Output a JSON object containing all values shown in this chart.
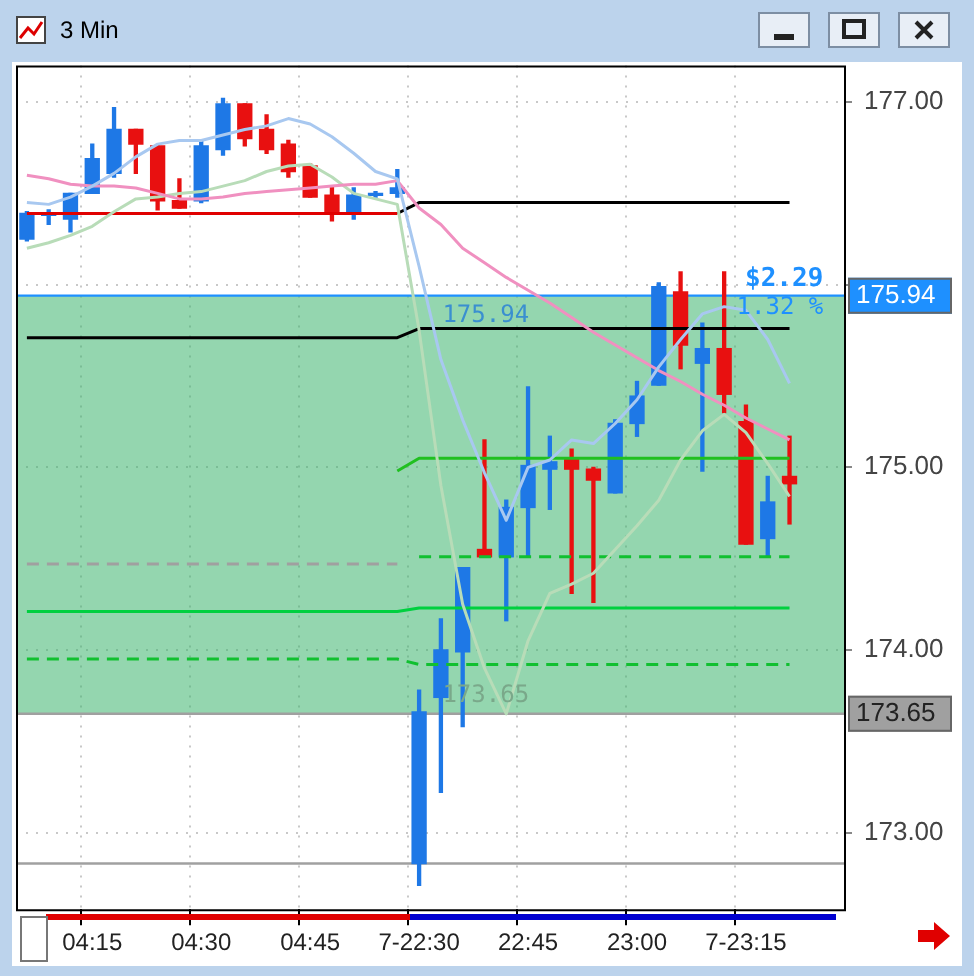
{
  "chart_data": {
    "type": "candlestick",
    "title": "3 Min",
    "categories": [
      null,
      null,
      null,
      "04:15",
      null,
      null,
      null,
      null,
      "04:30",
      null,
      null,
      null,
      null,
      "04:45",
      null,
      null,
      null,
      null,
      "7-22:30",
      null,
      null,
      null,
      null,
      "22:45",
      null,
      null,
      null,
      null,
      "23:00",
      null,
      null,
      null,
      null,
      "7-23:15",
      null,
      null,
      null,
      null
    ],
    "ohlc": [
      [
        176.25,
        176.4,
        176.24,
        176.39
      ],
      [
        176.38,
        176.41,
        176.33,
        176.39
      ],
      [
        176.36,
        176.5,
        176.29,
        176.5
      ],
      [
        176.5,
        176.77,
        176.5,
        176.69
      ],
      [
        176.61,
        176.97,
        176.59,
        176.85
      ],
      [
        176.85,
        176.85,
        176.61,
        176.77
      ],
      [
        176.76,
        176.76,
        176.41,
        176.46
      ],
      [
        176.46,
        176.58,
        176.42,
        176.42
      ],
      [
        176.46,
        176.79,
        176.45,
        176.76
      ],
      [
        176.74,
        177.02,
        176.71,
        176.99
      ],
      [
        176.99,
        176.99,
        176.76,
        176.8
      ],
      [
        176.85,
        176.93,
        176.72,
        176.74
      ],
      [
        176.77,
        176.79,
        176.59,
        176.62
      ],
      [
        176.65,
        176.66,
        176.48,
        176.48
      ],
      [
        176.49,
        176.54,
        176.35,
        176.39
      ],
      [
        176.39,
        176.53,
        176.36,
        176.49
      ],
      [
        176.49,
        176.51,
        176.48,
        176.5
      ],
      [
        176.5,
        176.63,
        176.48,
        176.53
      ],
      [
        172.83,
        173.78,
        172.71,
        173.66
      ],
      [
        173.74,
        174.17,
        173.22,
        174.0
      ],
      [
        173.99,
        174.45,
        173.58,
        174.45
      ],
      [
        174.55,
        175.15,
        174.51,
        174.51
      ],
      [
        174.51,
        174.82,
        174.16,
        174.78
      ],
      [
        174.78,
        175.44,
        174.51,
        175.01
      ],
      [
        174.99,
        175.17,
        174.77,
        175.03
      ],
      [
        175.05,
        175.1,
        174.31,
        174.99
      ],
      [
        174.99,
        175.0,
        174.26,
        174.93
      ],
      [
        174.86,
        175.26,
        174.86,
        175.24
      ],
      [
        175.24,
        175.47,
        175.17,
        175.39
      ],
      [
        175.45,
        176.01,
        175.45,
        175.99
      ],
      [
        175.96,
        176.07,
        175.54,
        175.67
      ],
      [
        175.57,
        175.79,
        174.98,
        175.65
      ],
      [
        175.65,
        176.07,
        175.3,
        175.4
      ],
      [
        175.25,
        175.34,
        174.58,
        174.58
      ],
      [
        174.61,
        174.95,
        174.51,
        174.81
      ],
      [
        174.95,
        175.17,
        174.69,
        174.91
      ],
      null,
      null
    ],
    "colors": [
      "#1e78e6",
      "#1e78e6",
      "#1e78e6",
      "#1e78e6",
      "#1e78e6",
      "#e81010",
      "#e81010",
      "#e81010",
      "#1e78e6",
      "#1e78e6",
      "#e81010",
      "#e81010",
      "#e81010",
      "#e81010",
      "#e81010",
      "#1e78e6",
      "#1e78e6",
      "#1e78e6",
      "#1e78e6",
      "#1e78e6",
      "#1e78e6",
      "#e81010",
      "#1e78e6",
      "#1e78e6",
      "#1e78e6",
      "#e81010",
      "#e81010",
      "#1e78e6",
      "#1e78e6",
      "#1e78e6",
      "#e81010",
      "#1e78e6",
      "#e81010",
      "#e81010",
      "#1e78e6",
      "#e81010",
      null,
      null
    ],
    "series": [
      {
        "type": "line",
        "color": "#a8c8f0",
        "values": [
          176.45,
          176.44,
          176.48,
          176.54,
          176.61,
          176.7,
          176.77,
          176.79,
          176.79,
          176.82,
          176.85,
          176.87,
          176.91,
          176.88,
          176.81,
          176.72,
          176.62,
          176.58,
          176.1,
          175.59,
          175.26,
          174.97,
          174.71,
          175.0,
          175.04,
          175.15,
          175.13,
          175.24,
          175.37,
          175.55,
          175.7,
          175.84,
          175.88,
          175.86,
          175.7,
          175.46,
          null,
          null
        ]
      },
      {
        "type": "line",
        "color": "#f090c0",
        "values": [
          176.6,
          176.58,
          176.55,
          176.54,
          176.54,
          176.53,
          176.5,
          176.47,
          176.47,
          176.48,
          176.5,
          176.51,
          176.52,
          176.53,
          176.54,
          176.55,
          176.55,
          176.57,
          176.42,
          176.33,
          176.2,
          176.12,
          176.04,
          175.97,
          175.9,
          175.82,
          175.74,
          175.67,
          175.6,
          175.53,
          175.47,
          175.4,
          175.34,
          175.27,
          175.21,
          175.15,
          null,
          null
        ]
      },
      {
        "type": "line",
        "color": "#b8dcb8",
        "values": [
          176.2,
          176.23,
          176.27,
          176.32,
          176.4,
          176.47,
          176.48,
          176.5,
          176.51,
          176.54,
          176.57,
          176.62,
          176.65,
          176.66,
          176.59,
          176.5,
          176.47,
          176.44,
          175.75,
          174.9,
          174.25,
          173.9,
          173.65,
          174.05,
          174.31,
          174.36,
          174.42,
          174.55,
          174.68,
          174.82,
          175.04,
          175.2,
          175.29,
          175.19,
          175.02,
          174.84,
          null,
          null
        ]
      },
      {
        "type": "line",
        "color": "#e00000",
        "values": [
          176.39,
          176.39,
          176.39,
          176.39,
          176.39,
          176.39,
          176.39,
          176.39,
          176.39,
          176.39,
          176.39,
          176.39,
          176.39,
          176.39,
          176.39,
          176.39,
          176.39,
          176.39,
          null,
          null,
          null,
          null,
          null,
          null,
          null,
          null,
          null,
          null,
          null,
          null,
          null,
          null,
          null,
          null,
          null,
          null,
          null,
          null
        ]
      },
      {
        "type": "line",
        "color": "#000000",
        "values": [
          null,
          null,
          null,
          null,
          null,
          null,
          null,
          null,
          null,
          null,
          null,
          null,
          null,
          null,
          null,
          null,
          null,
          176.39,
          176.45,
          176.45,
          176.45,
          176.45,
          176.45,
          176.45,
          176.45,
          176.45,
          176.45,
          176.45,
          176.45,
          176.45,
          176.45,
          176.45,
          176.45,
          176.45,
          176.45,
          176.45,
          null,
          null
        ]
      },
      {
        "type": "line",
        "color": "#000000",
        "values": [
          175.71,
          175.71,
          175.71,
          175.71,
          175.71,
          175.71,
          175.71,
          175.71,
          175.71,
          175.71,
          175.71,
          175.71,
          175.71,
          175.71,
          175.71,
          175.71,
          175.71,
          175.71,
          175.76,
          175.76,
          175.76,
          175.76,
          175.76,
          175.76,
          175.76,
          175.76,
          175.76,
          175.76,
          175.76,
          175.76,
          175.76,
          175.76,
          175.76,
          175.76,
          175.76,
          175.76,
          null,
          null
        ]
      },
      {
        "type": "line",
        "color": "#20c020",
        "values": [
          null,
          null,
          null,
          null,
          null,
          null,
          null,
          null,
          null,
          null,
          null,
          null,
          null,
          null,
          null,
          null,
          null,
          174.98,
          175.05,
          175.05,
          175.05,
          175.05,
          175.05,
          175.05,
          175.05,
          175.05,
          175.05,
          175.05,
          175.05,
          175.05,
          175.05,
          175.05,
          175.05,
          175.05,
          175.05,
          175.05,
          null,
          null
        ]
      },
      {
        "type": "line",
        "color": "#a0a0a0",
        "line_style": "dashed",
        "values": [
          174.47,
          174.47,
          174.47,
          174.47,
          174.47,
          174.47,
          174.47,
          174.47,
          174.47,
          174.47,
          174.47,
          174.47,
          174.47,
          174.47,
          174.47,
          174.47,
          174.47,
          174.47,
          null,
          null,
          null,
          null,
          null,
          null,
          null,
          null,
          null,
          null,
          null,
          null,
          null,
          null,
          null,
          null,
          null,
          null,
          null,
          null
        ]
      },
      {
        "type": "line",
        "color": "#10c030",
        "line_style": "dashed",
        "values": [
          null,
          null,
          null,
          null,
          null,
          null,
          null,
          null,
          null,
          null,
          null,
          null,
          null,
          null,
          null,
          null,
          null,
          null,
          174.51,
          174.51,
          174.51,
          174.51,
          174.51,
          174.51,
          174.51,
          174.51,
          174.51,
          174.51,
          174.51,
          174.51,
          174.51,
          174.51,
          174.51,
          174.51,
          174.51,
          174.51,
          null,
          null
        ]
      },
      {
        "type": "line",
        "color": "#00d040",
        "values": [
          174.21,
          174.21,
          174.21,
          174.21,
          174.21,
          174.21,
          174.21,
          174.21,
          174.21,
          174.21,
          174.21,
          174.21,
          174.21,
          174.21,
          174.21,
          174.21,
          174.21,
          174.21,
          174.23,
          174.23,
          174.23,
          174.23,
          174.23,
          174.23,
          174.23,
          174.23,
          174.23,
          174.23,
          174.23,
          174.23,
          174.23,
          174.23,
          174.23,
          174.23,
          174.23,
          174.23,
          null,
          null
        ]
      },
      {
        "type": "line",
        "color": "#10c030",
        "line_style": "dashed",
        "values": [
          173.95,
          173.95,
          173.95,
          173.95,
          173.95,
          173.95,
          173.95,
          173.95,
          173.95,
          173.95,
          173.95,
          173.95,
          173.95,
          173.95,
          173.95,
          173.95,
          173.95,
          173.95,
          173.92,
          173.92,
          173.92,
          173.92,
          173.92,
          173.92,
          173.92,
          173.92,
          173.92,
          173.92,
          173.92,
          173.92,
          173.92,
          173.92,
          173.92,
          173.92,
          173.92,
          173.92,
          null,
          null
        ]
      }
    ],
    "ylim": [
      172.58,
      177.2
    ],
    "yticks": [
      {
        "value": 173,
        "label": "173.00"
      },
      {
        "value": 174,
        "label": "174.00"
      },
      {
        "value": 175,
        "label": "175.00"
      },
      {
        "value": 176,
        "label": null
      },
      {
        "value": 177,
        "label": "177.00"
      }
    ],
    "ref_lines": [
      {
        "axis": "y",
        "value": 175.94,
        "label": "175.94",
        "color": "#1e90ff"
      },
      {
        "axis": "y",
        "value": 173.65,
        "label": "173.65",
        "color": "#a0a0a0"
      },
      {
        "axis": "y",
        "value": 172.83,
        "label": null,
        "color": "#a0a0a0"
      }
    ],
    "bands": [
      {
        "axis": "y",
        "from": 173.65,
        "to": 175.94,
        "label": null,
        "color": "#3cb46e"
      }
    ],
    "annotations": [
      {
        "text": "175.94",
        "y": 175.94
      },
      {
        "text": "173.65",
        "y": 173.65
      },
      {
        "text": "$2.29",
        "y": 175.94
      },
      {
        "text": "1.32 %",
        "y": 175.94
      }
    ],
    "grid": true,
    "legend": false
  }
}
